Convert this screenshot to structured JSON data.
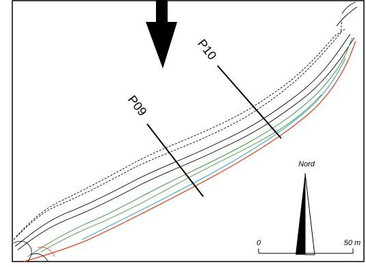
{
  "profiles": [
    {
      "id": "p09",
      "label": "P09"
    },
    {
      "id": "p10",
      "label": "P10"
    }
  ],
  "north_arrow": {
    "label": "Nord"
  },
  "scale_bar": {
    "start_label": "0",
    "end_label": "50 m"
  },
  "flow_arrow": {
    "icon": "down-arrow"
  },
  "line_colors": {
    "outline": "#000000",
    "red": "#e8431c",
    "blue": "#3fa7d6",
    "green": "#3a9b3a"
  }
}
